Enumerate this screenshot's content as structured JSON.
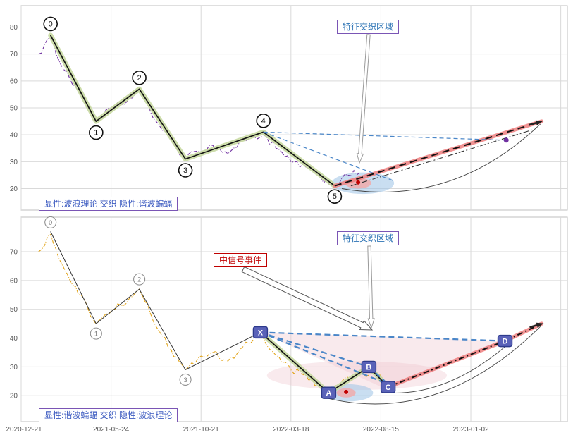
{
  "labels": {
    "overlap_region": "特征交织区域",
    "signal_event": "中信号事件",
    "legend_top": "显性:波浪理论 交织 隐性:谐波蝙蝠",
    "legend_bottom": "显性:谐波蝙蝠 交织 隐性:波浪理论"
  },
  "colors": {
    "grid": "#d9d9d9",
    "border": "#bfbfbf",
    "tick": "#595959",
    "wave_glow": "#c8d9a2",
    "projection_fill": "#ee7f7f",
    "price_top": "#7030a0",
    "price_bottom": "#e2a418",
    "guide_blue": "#4a86c8",
    "ellipse_blue": "#9dc3e6",
    "ellipse_pink": "#f2a8a8",
    "region_pink": "#efc2cc",
    "marker_letter_bg": "#5a62b8"
  },
  "chart_data": [
    {
      "type": "line",
      "title": "",
      "xlabel": "",
      "ylabel": "",
      "ylim": [
        12,
        88
      ],
      "yticks": [
        20,
        30,
        40,
        50,
        60,
        70,
        80
      ],
      "xlim_days": [
        0,
        911
      ],
      "xgrid_days": [
        0,
        150,
        300,
        450,
        600,
        750,
        900
      ],
      "x_axis_labels": [],
      "wave_marker_style": "black",
      "waves": [
        {
          "label": "0",
          "day": 49,
          "value": 77,
          "label_dy": -16
        },
        {
          "label": "1",
          "day": 125,
          "value": 45,
          "label_dy": 16
        },
        {
          "label": "2",
          "day": 197,
          "value": 57,
          "label_dy": -16
        },
        {
          "label": "3",
          "day": 274,
          "value": 31,
          "label_dy": 16
        },
        {
          "label": "4",
          "day": 404,
          "value": 41,
          "label_dy": -16
        },
        {
          "label": "5",
          "day": 523,
          "value": 21,
          "label_dy": 15
        }
      ],
      "wave_path": [
        [
          49,
          77
        ],
        [
          125,
          45
        ],
        [
          197,
          57
        ],
        [
          274,
          31
        ],
        [
          404,
          41
        ],
        [
          523,
          21
        ]
      ],
      "projection": [
        [
          523,
          21
        ],
        [
          868,
          45
        ]
      ],
      "price_color_key": "price_top",
      "price_anchors": [
        [
          29,
          70
        ],
        [
          49,
          76
        ],
        [
          72,
          64
        ],
        [
          100,
          55
        ],
        [
          125,
          45
        ],
        [
          152,
          50
        ],
        [
          175,
          52
        ],
        [
          197,
          57
        ],
        [
          225,
          45
        ],
        [
          250,
          38
        ],
        [
          274,
          31
        ],
        [
          295,
          34
        ],
        [
          320,
          36
        ],
        [
          345,
          33
        ],
        [
          370,
          38
        ],
        [
          404,
          40
        ],
        [
          425,
          35
        ],
        [
          450,
          30
        ],
        [
          475,
          28
        ],
        [
          500,
          24
        ],
        [
          523,
          21
        ],
        [
          545,
          25
        ],
        [
          565,
          26
        ]
      ],
      "guides": [
        {
          "from": [
            404,
            41
          ],
          "to": [
            620,
            23
          ],
          "style": "blue-dash"
        },
        {
          "from": [
            404,
            41
          ],
          "to": [
            805,
            38
          ],
          "style": "blue-dash"
        },
        {
          "from": [
            550,
            21
          ],
          "to": [
            855,
            42
          ],
          "style": "black-dashdot"
        }
      ],
      "arcs": [
        {
          "from": [
            535,
            20
          ],
          "to": [
            866,
            44
          ],
          "ctrl": [
            720,
            13
          ]
        }
      ],
      "regions": [
        {
          "type": "ellipse",
          "c": [
            570,
            22
          ],
          "rx": 52,
          "ry": 4,
          "fill_key": "ellipse_blue",
          "opacity": 0.55
        },
        {
          "type": "ellipse",
          "c": [
            562,
            22
          ],
          "rx": 22,
          "ry": 2,
          "fill_key": "ellipse_pink",
          "opacity": 0.8
        }
      ],
      "dots": [
        {
          "at": [
            562,
            22.3
          ],
          "r": 3,
          "fill": "#c00000"
        },
        {
          "at": [
            809,
            38
          ],
          "r": 3.5,
          "fill": "#7030a0"
        }
      ]
    },
    {
      "type": "line",
      "title": "",
      "xlabel": "",
      "ylabel": "",
      "ylim": [
        11,
        82
      ],
      "yticks": [
        20,
        30,
        40,
        50,
        60,
        70
      ],
      "xlim_days": [
        0,
        911
      ],
      "xgrid_days": [
        0,
        150,
        300,
        450,
        600,
        750,
        900
      ],
      "x_axis_labels": [
        {
          "day": 0,
          "label": "2020-12-21"
        },
        {
          "day": 150,
          "label": "2021-05-24"
        },
        {
          "day": 300,
          "label": "2021-10-21"
        },
        {
          "day": 450,
          "label": "2022-03-18"
        },
        {
          "day": 600,
          "label": "2022-08-15"
        },
        {
          "day": 750,
          "label": "2023-01-02"
        }
      ],
      "wave_marker_style": "gray",
      "waves": [
        {
          "label": "0",
          "day": 49,
          "value": 77,
          "label_dy": -13
        },
        {
          "label": "1",
          "day": 125,
          "value": 45,
          "label_dy": 14
        },
        {
          "label": "2",
          "day": 197,
          "value": 57,
          "label_dy": -14
        },
        {
          "label": "3",
          "day": 274,
          "value": 29,
          "label_dy": 14
        }
      ],
      "letters": [
        {
          "label": "X",
          "day": 399,
          "value": 42
        },
        {
          "label": "A",
          "day": 513,
          "value": 21
        },
        {
          "label": "B",
          "day": 580,
          "value": 30
        },
        {
          "label": "C",
          "day": 612,
          "value": 23
        },
        {
          "label": "D",
          "day": 807,
          "value": 39
        }
      ],
      "thin_path": [
        [
          49,
          77
        ],
        [
          125,
          45
        ],
        [
          197,
          57
        ],
        [
          274,
          29
        ],
        [
          399,
          42
        ]
      ],
      "wave_path": [
        [
          399,
          42
        ],
        [
          513,
          21
        ],
        [
          580,
          30
        ],
        [
          612,
          23
        ]
      ],
      "projection": [
        [
          612,
          23
        ],
        [
          807,
          39
        ],
        [
          868,
          45
        ]
      ],
      "price_color_key": "price_bottom",
      "price_anchors": [
        [
          29,
          70
        ],
        [
          49,
          76
        ],
        [
          72,
          64
        ],
        [
          100,
          55
        ],
        [
          125,
          45
        ],
        [
          152,
          50
        ],
        [
          175,
          52
        ],
        [
          197,
          57
        ],
        [
          225,
          44
        ],
        [
          250,
          36
        ],
        [
          274,
          29
        ],
        [
          295,
          33
        ],
        [
          320,
          35
        ],
        [
          345,
          32
        ],
        [
          370,
          37
        ],
        [
          399,
          41
        ],
        [
          425,
          34
        ],
        [
          450,
          29
        ],
        [
          475,
          27
        ],
        [
          500,
          23
        ],
        [
          513,
          21
        ],
        [
          535,
          25
        ],
        [
          560,
          27
        ],
        [
          585,
          28
        ],
        [
          605,
          25
        ]
      ],
      "guides": [
        {
          "from": [
            399,
            42
          ],
          "to": [
            580,
            30
          ],
          "style": "blue-dash-thick"
        },
        {
          "from": [
            399,
            42
          ],
          "to": [
            612,
            24
          ],
          "style": "blue-dash-thick"
        },
        {
          "from": [
            399,
            42
          ],
          "to": [
            807,
            39
          ],
          "style": "blue-dash-thick"
        },
        {
          "from": [
            580,
            30
          ],
          "to": [
            612,
            24
          ],
          "style": "blue-dash-thick"
        }
      ],
      "arcs": [
        {
          "from": [
            513,
            19
          ],
          "to": [
            866,
            44
          ],
          "ctrl": [
            700,
            10
          ]
        },
        {
          "from": [
            612,
            21
          ],
          "to": [
            807,
            37
          ],
          "ctrl": [
            710,
            20
          ]
        }
      ],
      "regions": [
        {
          "type": "polygon",
          "points": [
            [
              399,
              42
            ],
            [
              807,
              39
            ],
            [
              612,
              22
            ]
          ],
          "fill_key": "region_pink",
          "opacity": 0.35
        },
        {
          "type": "ellipse",
          "c": [
            560,
            27
          ],
          "rx": 150,
          "ry": 5,
          "fill_key": "region_pink",
          "opacity": 0.35
        },
        {
          "type": "ellipse",
          "c": [
            545,
            21
          ],
          "rx": 42,
          "ry": 3,
          "fill_key": "ellipse_blue",
          "opacity": 0.55
        },
        {
          "type": "ellipse",
          "c": [
            542,
            21
          ],
          "rx": 16,
          "ry": 1.6,
          "fill_key": "ellipse_pink",
          "opacity": 0.8
        }
      ],
      "dots": [
        {
          "at": [
            542,
            21.3
          ],
          "r": 3,
          "fill": "#c00000"
        }
      ]
    }
  ],
  "arrows": [
    {
      "from": [
        523,
        49
      ],
      "to": [
        510,
        231
      ],
      "shaft": 2.2,
      "head_w": 9,
      "head_l": 13,
      "fill": "#ffffff",
      "stroke": "#999999"
    },
    {
      "from": [
        524,
        349
      ],
      "to": [
        527,
        465
      ],
      "shaft": 2.2,
      "head_w": 9,
      "head_l": 13,
      "fill": "#ffffff",
      "stroke": "#999999"
    },
    {
      "from": [
        345,
        382
      ],
      "to": [
        528,
        468
      ],
      "shaft": 4,
      "head_w": 14,
      "head_l": 16,
      "fill": "#ffffff",
      "stroke": "#555555"
    },
    {
      "from": [
        751,
        177
      ],
      "to": [
        769,
        172
      ],
      "shaft": 0.8,
      "head_w": 6,
      "head_l": 8,
      "fill": "#222222",
      "stroke": "#222222"
    },
    {
      "from": [
        752,
        464
      ],
      "to": [
        770,
        459
      ],
      "shaft": 0.8,
      "head_w": 6,
      "head_l": 8,
      "fill": "#222222",
      "stroke": "#222222"
    }
  ]
}
